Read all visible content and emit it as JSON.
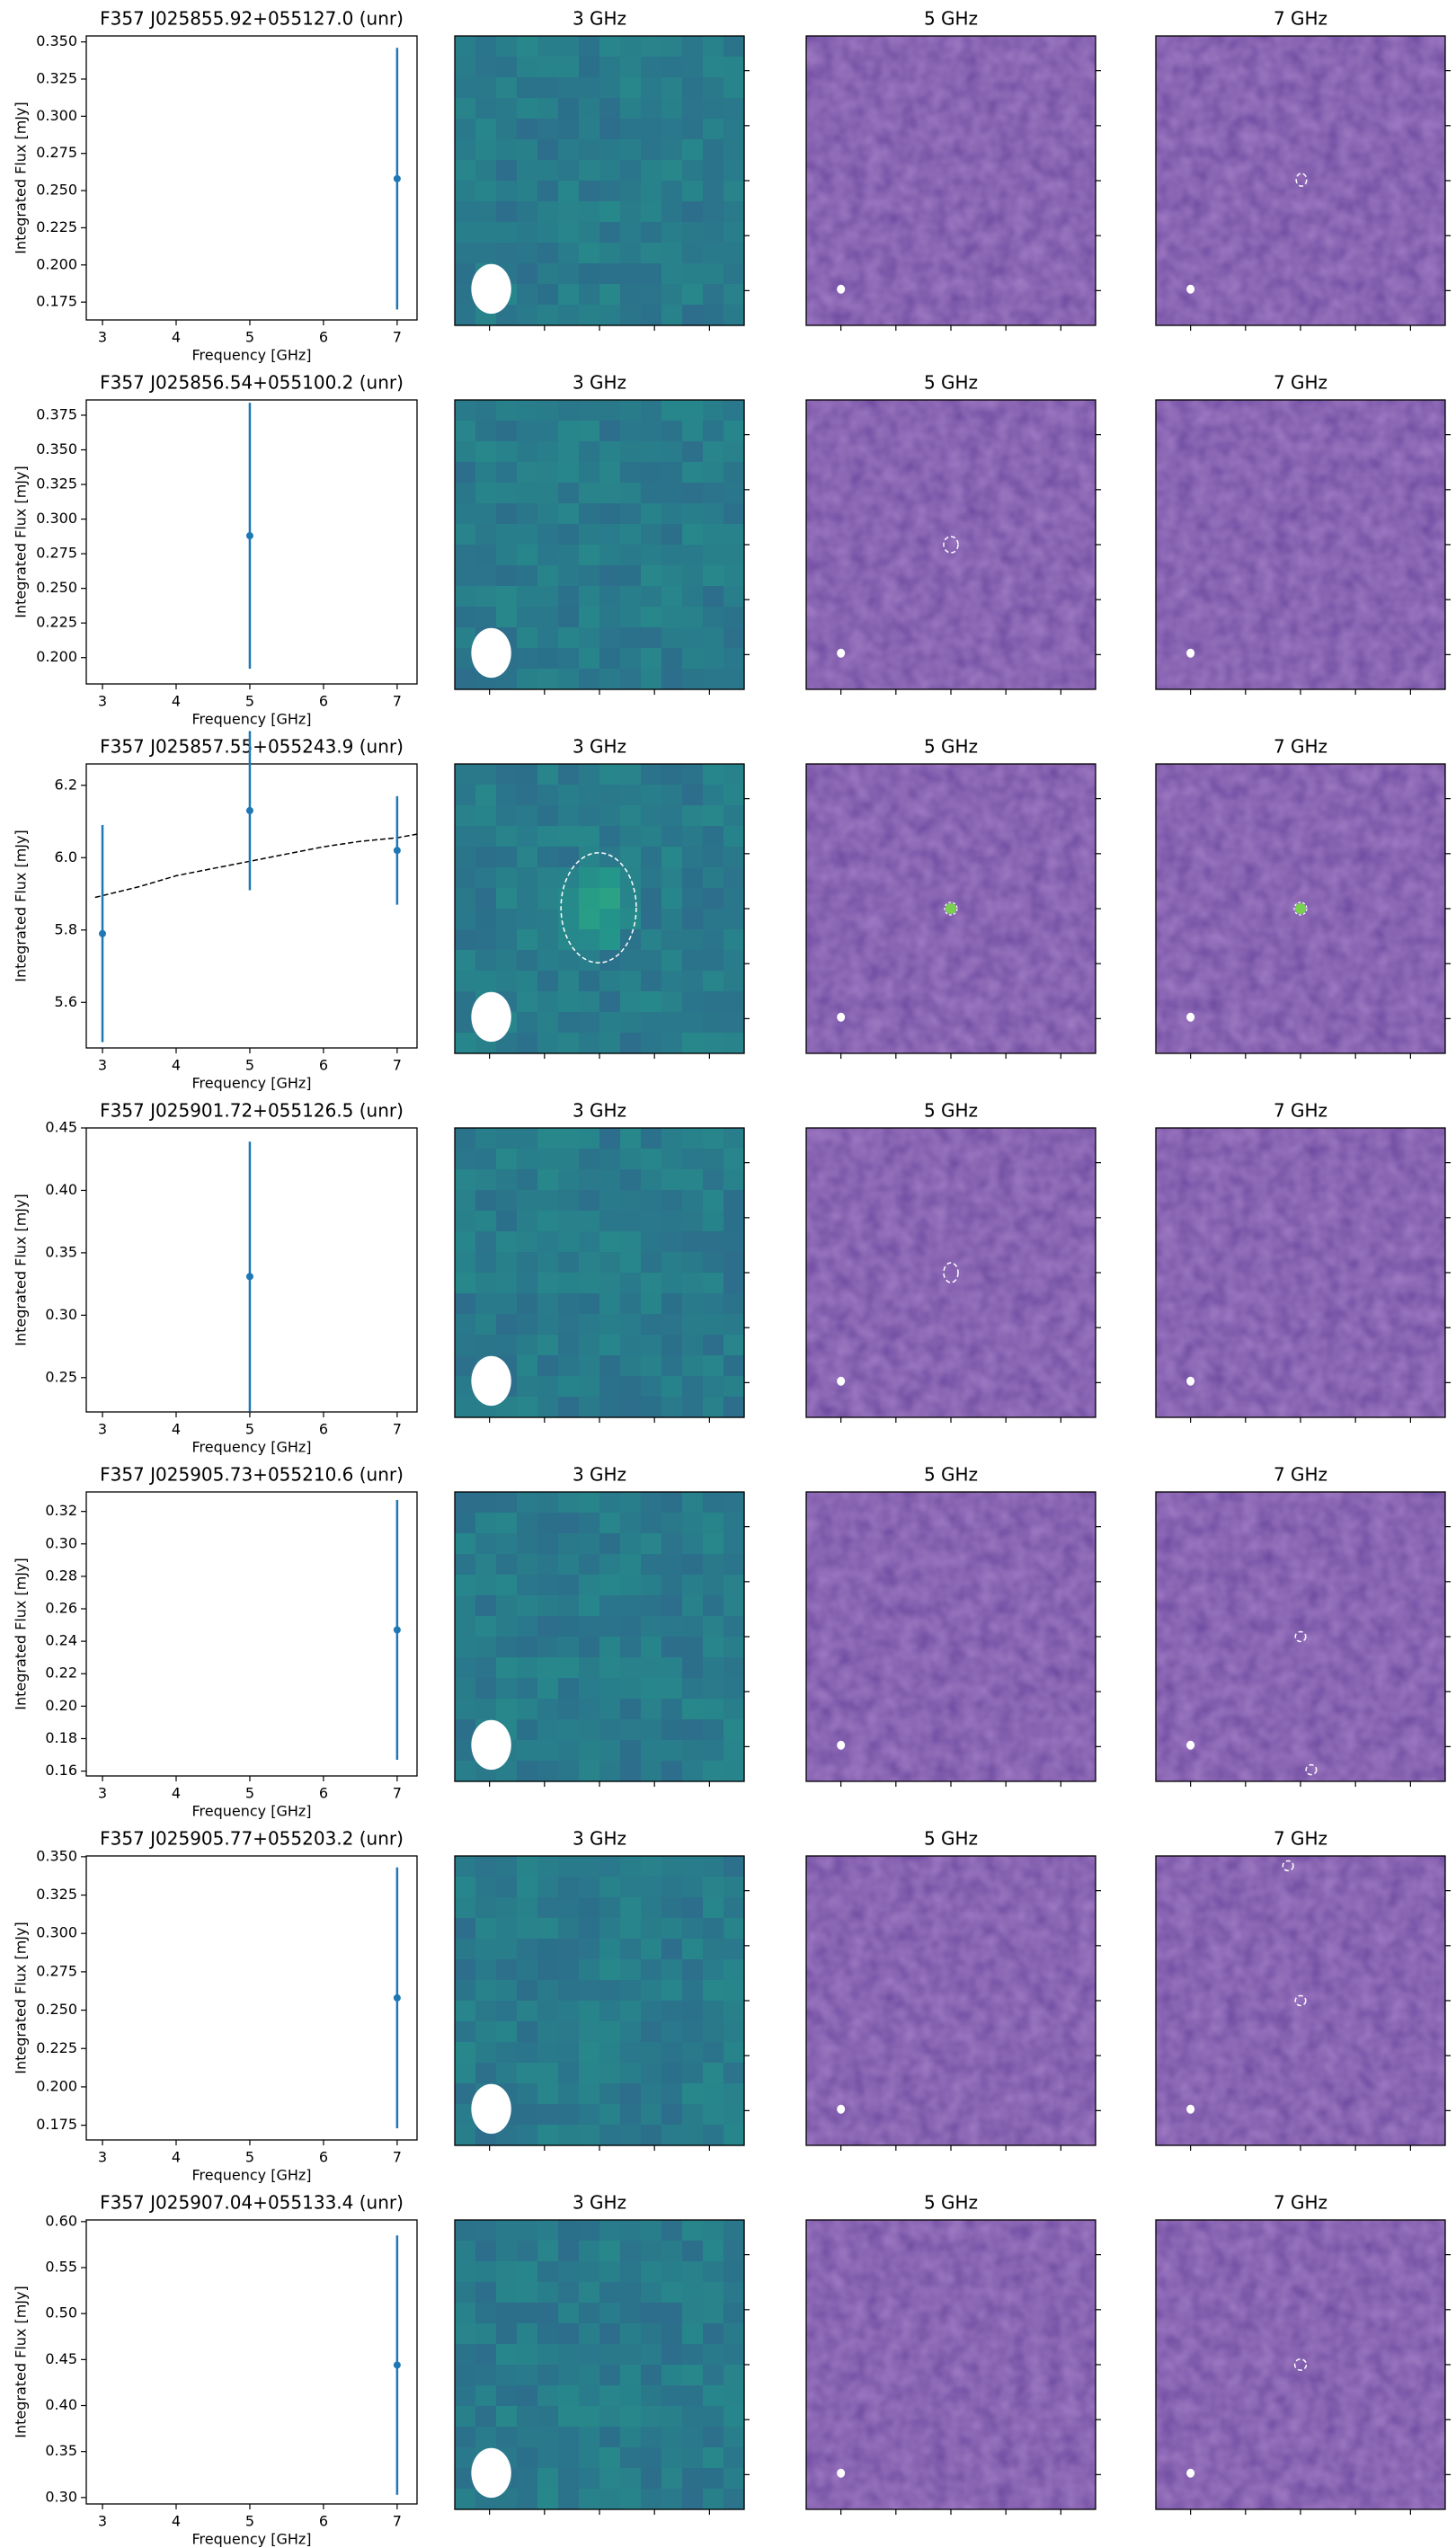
{
  "chart_data": [
    {
      "type": "errorbar",
      "title": "F357 J025855.92+055127.0 (unr)",
      "xlabel": "Frequency [GHz]",
      "ylabel": "Integrated Flux [mJy]",
      "color": "#1f77b4",
      "x": [
        7
      ],
      "values": [
        0.258
      ],
      "errors": [
        0.088
      ],
      "xlim": [
        2.78,
        7.27
      ],
      "xticks": [
        3,
        4,
        5,
        6,
        7
      ],
      "ylim": [
        0.163,
        0.354
      ],
      "yticks": [
        0.175,
        {
          "value": 0.2,
          "label": "0.200"
        },
        0.225,
        {
          "value": 0.25,
          "label": "0.250"
        },
        0.275,
        {
          "value": 0.3,
          "label": "0.300"
        },
        0.325,
        {
          "value": 0.35,
          "label": "0.350"
        }
      ],
      "panel_titles": [
        "3 GHz",
        "5 GHz",
        "7 GHz"
      ]
    },
    {
      "type": "errorbar",
      "title": "F357 J025856.54+055100.2 (unr)",
      "xlabel": "Frequency [GHz]",
      "ylabel": "Integrated Flux [mJy]",
      "color": "#1f77b4",
      "x": [
        5
      ],
      "values": [
        0.288
      ],
      "errors": [
        0.096
      ],
      "xlim": [
        2.78,
        7.27
      ],
      "xticks": [
        3,
        4,
        5,
        6,
        7
      ],
      "ylim": [
        0.181,
        0.386
      ],
      "yticks": [
        {
          "value": 0.2,
          "label": "0.200"
        },
        0.225,
        {
          "value": 0.25,
          "label": "0.250"
        },
        0.275,
        {
          "value": 0.3,
          "label": "0.300"
        },
        0.325,
        {
          "value": 0.35,
          "label": "0.350"
        },
        0.375
      ],
      "panel_titles": [
        "3 GHz",
        "5 GHz",
        "7 GHz"
      ]
    },
    {
      "type": "errorbar",
      "title": "F357 J025857.55+055243.9 (unr)",
      "xlabel": "Frequency [GHz]",
      "ylabel": "Integrated Flux [mJy]",
      "color": "#1f77b4",
      "x": [
        3,
        5,
        7
      ],
      "values": [
        5.79,
        6.13,
        6.02
      ],
      "errors": [
        0.3,
        0.22,
        0.15
      ],
      "fit": {
        "x": [
          2.9,
          3.5,
          4,
          4.5,
          5,
          5.5,
          6,
          6.5,
          7,
          7.27
        ],
        "values": [
          5.89,
          5.92,
          5.95,
          5.97,
          5.99,
          6.01,
          6.03,
          6.045,
          6.055,
          6.065
        ]
      },
      "xlim": [
        2.78,
        7.27
      ],
      "xticks": [
        3,
        4,
        5,
        6,
        7
      ],
      "ylim": [
        5.474,
        6.259
      ],
      "yticks": [
        5.6,
        5.8,
        {
          "value": 6,
          "label": "6.0"
        },
        6.2
      ],
      "panel_titles": [
        "3 GHz",
        "5 GHz",
        "7 GHz"
      ]
    },
    {
      "type": "errorbar",
      "title": "F357 J025901.72+055126.5 (unr)",
      "xlabel": "Frequency [GHz]",
      "ylabel": "Integrated Flux [mJy]",
      "color": "#1f77b4",
      "x": [
        5
      ],
      "values": [
        0.331
      ],
      "errors": [
        0.108
      ],
      "xlim": [
        2.78,
        7.27
      ],
      "xticks": [
        3,
        4,
        5,
        6,
        7
      ],
      "ylim": [
        0.2225,
        0.45
      ],
      "yticks": [
        0.25,
        {
          "value": 0.3,
          "label": "0.30"
        },
        0.35,
        {
          "value": 0.4,
          "label": "0.40"
        },
        0.45
      ],
      "panel_titles": [
        "3 GHz",
        "5 GHz",
        "7 GHz"
      ]
    },
    {
      "type": "errorbar",
      "title": "F357 J025905.73+055210.6 (unr)",
      "xlabel": "Frequency [GHz]",
      "ylabel": "Integrated Flux [mJy]",
      "color": "#1f77b4",
      "x": [
        7
      ],
      "values": [
        0.247
      ],
      "errors": [
        0.08
      ],
      "xlim": [
        2.78,
        7.27
      ],
      "xticks": [
        3,
        4,
        5,
        6,
        7
      ],
      "ylim": [
        0.157,
        0.332
      ],
      "yticks": [
        0.16,
        0.18,
        {
          "value": 0.2,
          "label": "0.20"
        },
        0.22,
        0.24,
        0.26,
        0.28,
        {
          "value": 0.3,
          "label": "0.30"
        },
        0.32
      ],
      "panel_titles": [
        "3 GHz",
        "5 GHz",
        "7 GHz"
      ]
    },
    {
      "type": "errorbar",
      "title": "F357 J025905.77+055203.2 (unr)",
      "xlabel": "Frequency [GHz]",
      "ylabel": "Integrated Flux [mJy]",
      "color": "#1f77b4",
      "x": [
        7
      ],
      "values": [
        0.258
      ],
      "errors": [
        0.085
      ],
      "xlim": [
        2.78,
        7.27
      ],
      "xticks": [
        3,
        4,
        5,
        6,
        7
      ],
      "ylim": [
        0.1654,
        0.3505
      ],
      "yticks": [
        0.175,
        {
          "value": 0.2,
          "label": "0.200"
        },
        0.225,
        {
          "value": 0.25,
          "label": "0.250"
        },
        0.275,
        {
          "value": 0.3,
          "label": "0.300"
        },
        0.325,
        {
          "value": 0.35,
          "label": "0.350"
        }
      ],
      "panel_titles": [
        "3 GHz",
        "5 GHz",
        "7 GHz"
      ]
    },
    {
      "type": "errorbar",
      "title": "F357 J025907.04+055133.4 (unr)",
      "xlabel": "Frequency [GHz]",
      "ylabel": "Integrated Flux [mJy]",
      "color": "#1f77b4",
      "x": [
        7
      ],
      "values": [
        0.444
      ],
      "errors": [
        0.141
      ],
      "xlim": [
        2.78,
        7.27
      ],
      "xticks": [
        3,
        4,
        5,
        6,
        7
      ],
      "ylim": [
        0.293,
        0.6018
      ],
      "yticks": [
        {
          "value": 0.3,
          "label": "0.30"
        },
        0.35,
        {
          "value": 0.4,
          "label": "0.40"
        },
        0.45,
        {
          "value": 0.5,
          "label": "0.50"
        },
        0.55,
        {
          "value": 0.6,
          "label": "0.60"
        }
      ],
      "panel_titles": [
        "3 GHz",
        "5 GHz",
        "7 GHz"
      ]
    }
  ]
}
